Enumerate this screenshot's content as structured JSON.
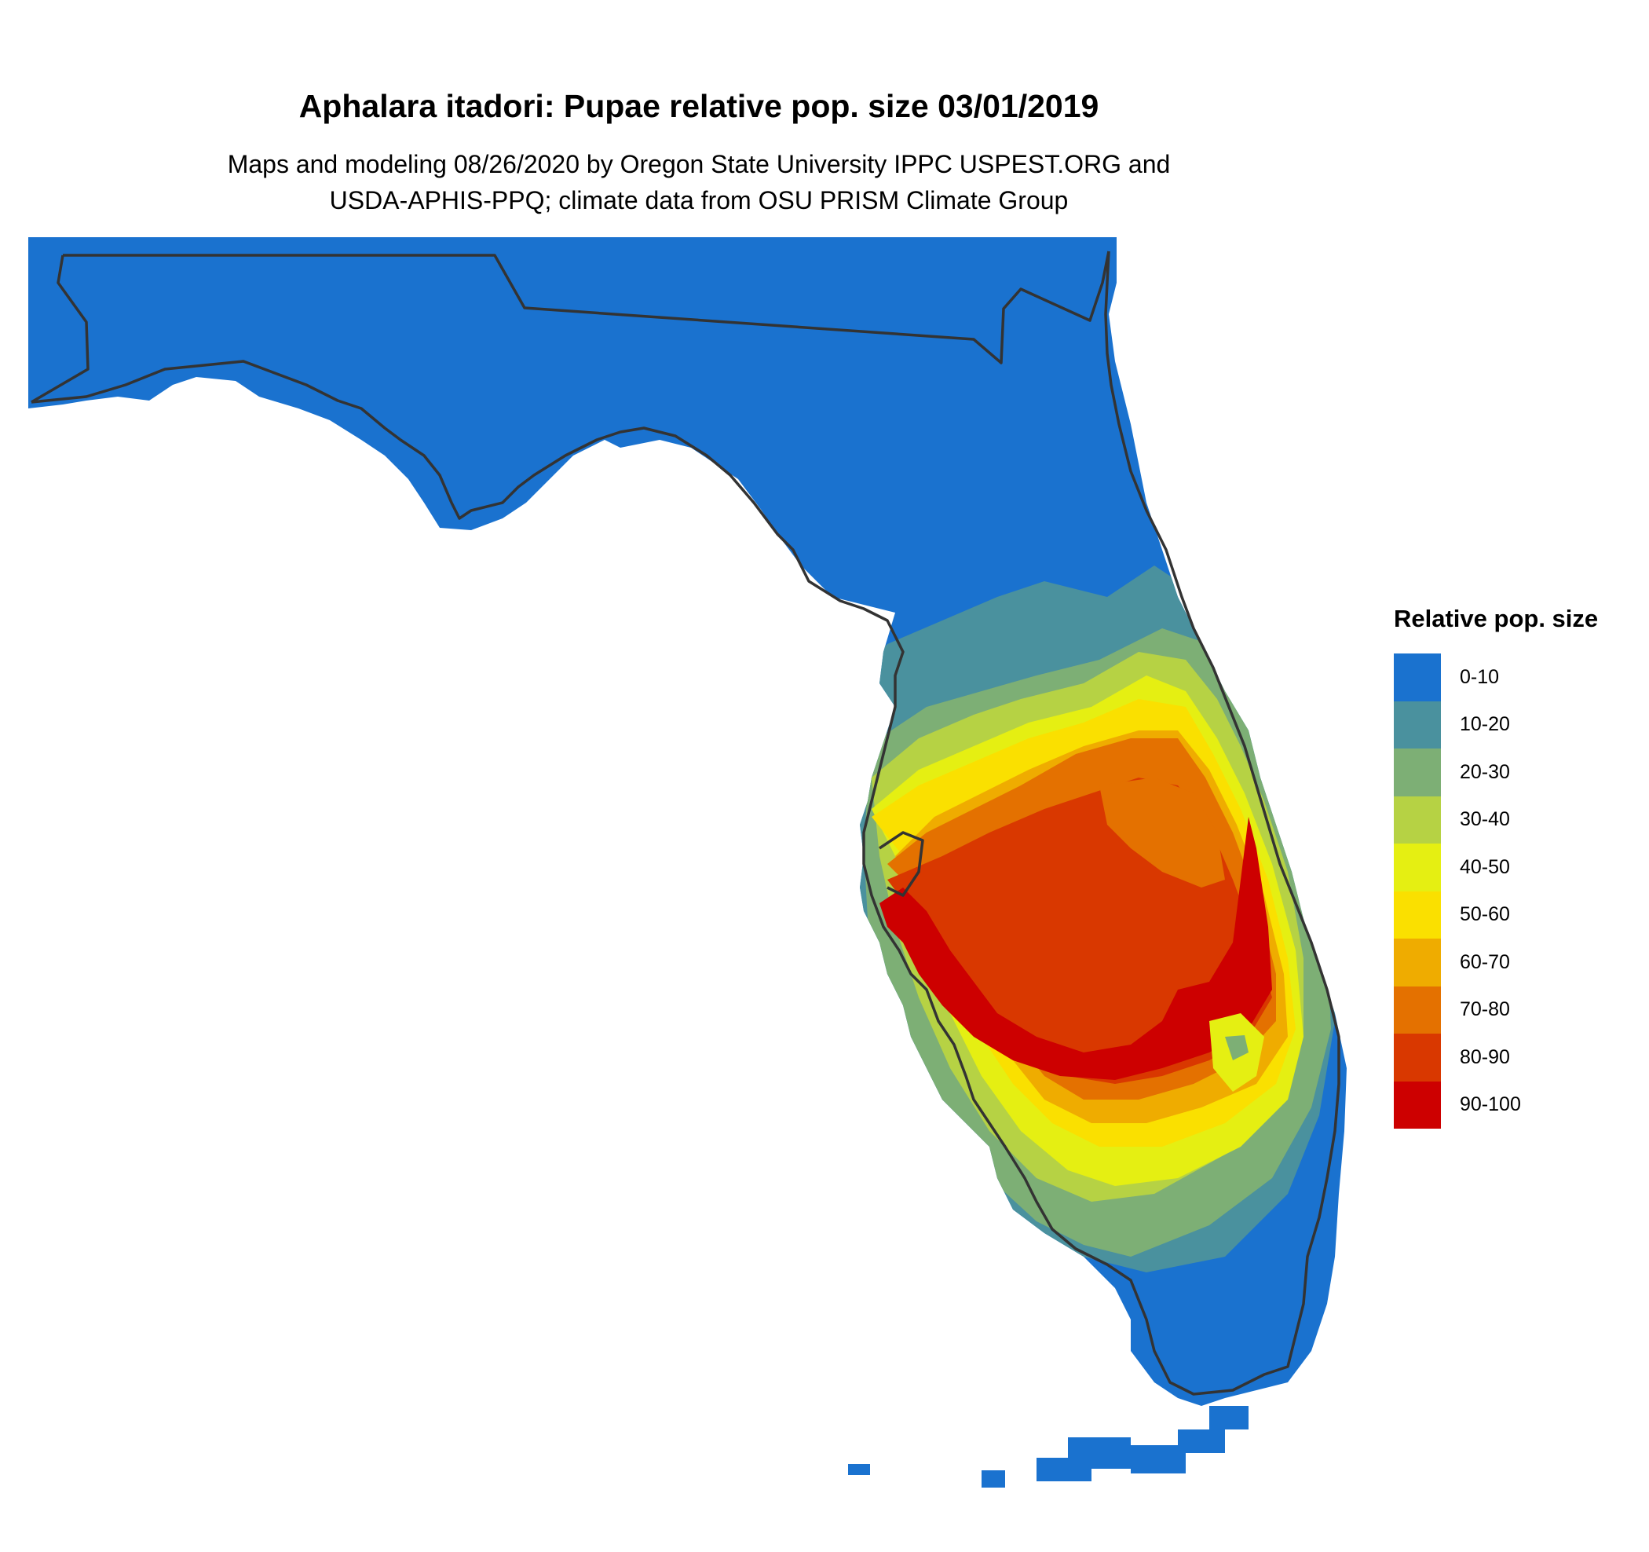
{
  "title": "Aphalara itadori: Pupae relative pop. size 03/01/2019",
  "subtitle_lines": [
    "Maps and modeling 08/26/2020 by Oregon State University IPPC USPEST.ORG and",
    "USDA-APHIS-PPQ; climate data from OSU PRISM Climate Group"
  ],
  "legend": {
    "title": "Relative pop. size",
    "items": [
      {
        "label": "0-10",
        "color": "#1a72cf"
      },
      {
        "label": "10-20",
        "color": "#4a919e"
      },
      {
        "label": "20-30",
        "color": "#7daf75"
      },
      {
        "label": "30-40",
        "color": "#b6d244"
      },
      {
        "label": "40-50",
        "color": "#e5ef12"
      },
      {
        "label": "50-60",
        "color": "#fae000"
      },
      {
        "label": "60-70",
        "color": "#efac00"
      },
      {
        "label": "70-80",
        "color": "#e47100"
      },
      {
        "label": "80-90",
        "color": "#d93800"
      },
      {
        "label": "90-100",
        "color": "#cd0000"
      }
    ]
  }
}
